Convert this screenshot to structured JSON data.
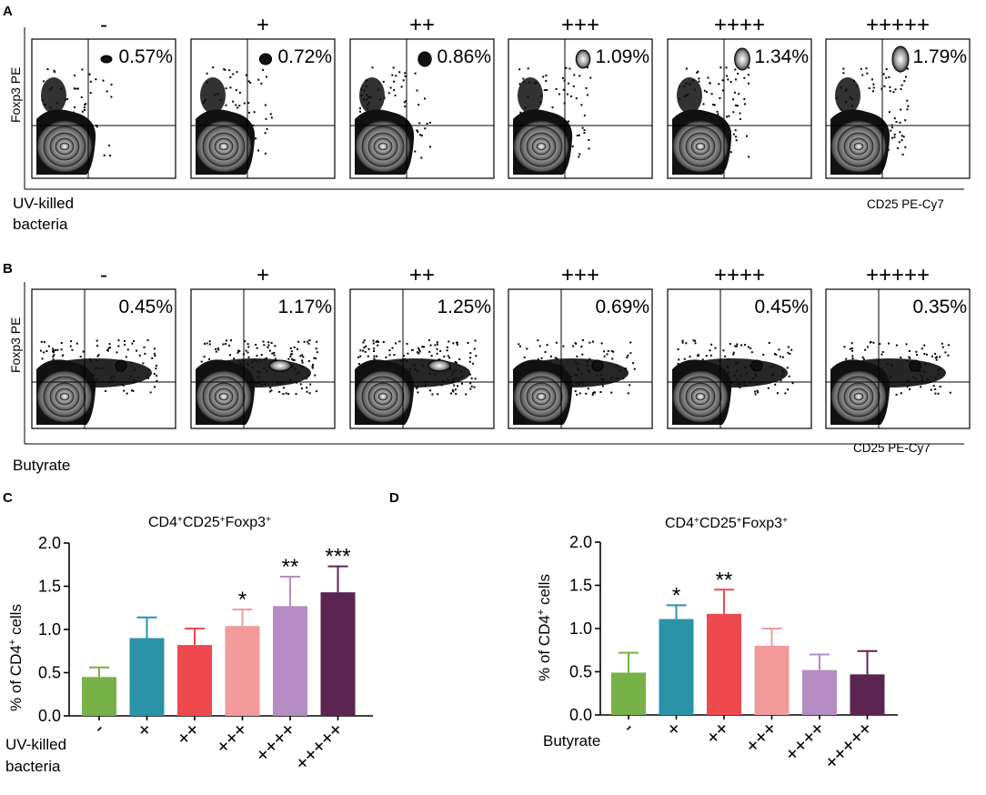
{
  "panel_a": {
    "letter": "A",
    "y_axis_label": "Foxp3 PE",
    "x_axis_label": "CD25 PE-Cy7",
    "treatment_label_line1": "UV-killed",
    "treatment_label_line2": "bacteria",
    "doses": [
      "-",
      "+",
      "++",
      "+++",
      "++++",
      "+++++"
    ],
    "percentages": [
      "0.57%",
      "0.72%",
      "0.86%",
      "1.09%",
      "1.34%",
      "1.79%"
    ]
  },
  "panel_b": {
    "letter": "B",
    "y_axis_label": "Foxp3 PE",
    "x_axis_label": "CD25 PE-Cy7",
    "treatment_label": "Butyrate",
    "doses": [
      "-",
      "+",
      "++",
      "+++",
      "++++",
      "+++++"
    ],
    "percentages": [
      "0.45%",
      "1.17%",
      "1.25%",
      "0.69%",
      "0.45%",
      "0.35%"
    ]
  },
  "colors": {
    "green": "#77b148",
    "teal": "#2a93a8",
    "red": "#ee4a4e",
    "pink": "#f29a9a",
    "lavender": "#b58cc4",
    "plum": "#5c2450"
  },
  "chart_data": [
    {
      "panel": "C",
      "type": "bar",
      "title": "CD4+CD25+Foxp3+",
      "title_main": "CD4",
      "title_sup1": "+",
      "title_mid": "CD25",
      "title_sup2": "+",
      "title_end": "Foxp3",
      "title_sup3": "+",
      "ylabel_main": "% of CD4",
      "ylabel_sup": "+",
      "ylabel_end": " cells",
      "xlabel_line1": "UV-killed",
      "xlabel_line2": "bacteria",
      "categories": [
        "-",
        "+",
        "++",
        "+++",
        "++++",
        "+++++"
      ],
      "values": [
        0.45,
        0.9,
        0.82,
        1.04,
        1.27,
        1.43
      ],
      "errors": [
        0.11,
        0.24,
        0.19,
        0.19,
        0.34,
        0.3
      ],
      "significance": [
        "",
        "",
        "",
        "*",
        "**",
        "***"
      ],
      "ylim": [
        0,
        2.0
      ],
      "yticks": [
        "0.0",
        "0.5",
        "1.0",
        "1.5",
        "2.0"
      ],
      "colors": [
        "#77b148",
        "#2a93a8",
        "#ee4a4e",
        "#f29a9a",
        "#b58cc4",
        "#5c2450"
      ]
    },
    {
      "panel": "D",
      "type": "bar",
      "title": "CD4+CD25+Foxp3+",
      "title_main": "CD4",
      "title_sup1": "+",
      "title_mid": "CD25",
      "title_sup2": "+",
      "title_end": "Foxp3",
      "title_sup3": "+",
      "ylabel_main": "% of CD4",
      "ylabel_sup": "+",
      "ylabel_end": " cells",
      "xlabel": "Butyrate",
      "categories": [
        "-",
        "+",
        "++",
        "+++",
        "++++",
        "+++++"
      ],
      "values": [
        0.49,
        1.11,
        1.17,
        0.8,
        0.52,
        0.47
      ],
      "errors": [
        0.23,
        0.16,
        0.28,
        0.2,
        0.18,
        0.27
      ],
      "significance": [
        "",
        "*",
        "**",
        "",
        "",
        ""
      ],
      "ylim": [
        0,
        2.0
      ],
      "yticks": [
        "0.0",
        "0.5",
        "1.0",
        "1.5",
        "2.0"
      ],
      "colors": [
        "#77b148",
        "#2a93a8",
        "#ee4a4e",
        "#f29a9a",
        "#b58cc4",
        "#5c2450"
      ]
    }
  ]
}
